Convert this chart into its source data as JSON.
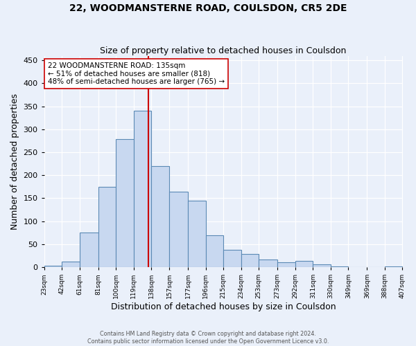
{
  "title": "22, WOODMANSTERNE ROAD, COULSDON, CR5 2DE",
  "subtitle": "Size of property relative to detached houses in Coulsdon",
  "xlabel": "Distribution of detached houses by size in Coulsdon",
  "ylabel": "Number of detached properties",
  "footnote1": "Contains HM Land Registry data © Crown copyright and database right 2024.",
  "footnote2": "Contains public sector information licensed under the Open Government Licence v3.0.",
  "bar_labels": [
    "23sqm",
    "42sqm",
    "61sqm",
    "81sqm",
    "100sqm",
    "119sqm",
    "138sqm",
    "157sqm",
    "177sqm",
    "196sqm",
    "215sqm",
    "234sqm",
    "253sqm",
    "273sqm",
    "292sqm",
    "311sqm",
    "330sqm",
    "349sqm",
    "369sqm",
    "388sqm",
    "407sqm"
  ],
  "hist_values": [
    3,
    12,
    75,
    175,
    278,
    340,
    220,
    165,
    145,
    70,
    38,
    28,
    17,
    10,
    13,
    6,
    2,
    0,
    0,
    2
  ],
  "bins": [
    23,
    42,
    61,
    81,
    100,
    119,
    138,
    157,
    177,
    196,
    215,
    234,
    253,
    273,
    292,
    311,
    330,
    349,
    369,
    388,
    407
  ],
  "vline_x": 135,
  "vline_color": "#cc0000",
  "bar_facecolor": "#c8d8f0",
  "bar_edgecolor": "#5b8ab5",
  "bg_color": "#eaf0fa",
  "annotation_text": "22 WOODMANSTERNE ROAD: 135sqm\n← 51% of detached houses are smaller (818)\n48% of semi-detached houses are larger (765) →",
  "annotation_box_facecolor": "#ffffff",
  "annotation_box_edgecolor": "#cc0000",
  "ylim": [
    0,
    460
  ],
  "yticks": [
    0,
    50,
    100,
    150,
    200,
    250,
    300,
    350,
    400,
    450
  ],
  "title_fontsize": 10,
  "subtitle_fontsize": 9
}
